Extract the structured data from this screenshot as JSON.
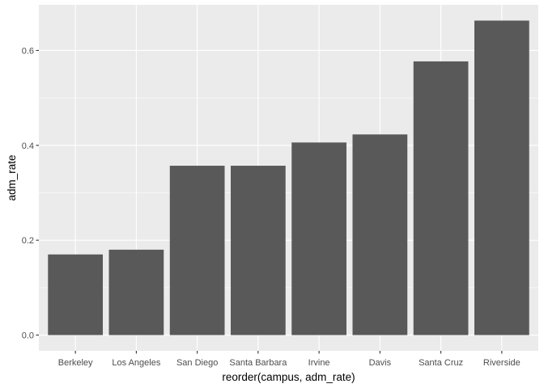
{
  "chart_data": {
    "type": "bar",
    "title": "",
    "xlabel": "reorder(campus, adm_rate)",
    "ylabel": "adm_rate",
    "categories": [
      "Berkeley",
      "Los Angeles",
      "San Diego",
      "Santa Barbara",
      "Irvine",
      "Davis",
      "Santa Cruz",
      "Riverside"
    ],
    "values": [
      0.17,
      0.18,
      0.357,
      0.357,
      0.406,
      0.423,
      0.577,
      0.663
    ],
    "ylim": [
      -0.0332,
      0.6962
    ],
    "yticks": [
      0.0,
      0.2,
      0.4,
      0.6
    ],
    "ytick_labels": [
      "0.0",
      "0.2",
      "0.4",
      "0.6"
    ],
    "grid": true,
    "colors": {
      "panel_background": "#ebebeb",
      "grid_major": "#ffffff",
      "bar_fill": "#595959",
      "tick_mark": "#333333"
    }
  }
}
